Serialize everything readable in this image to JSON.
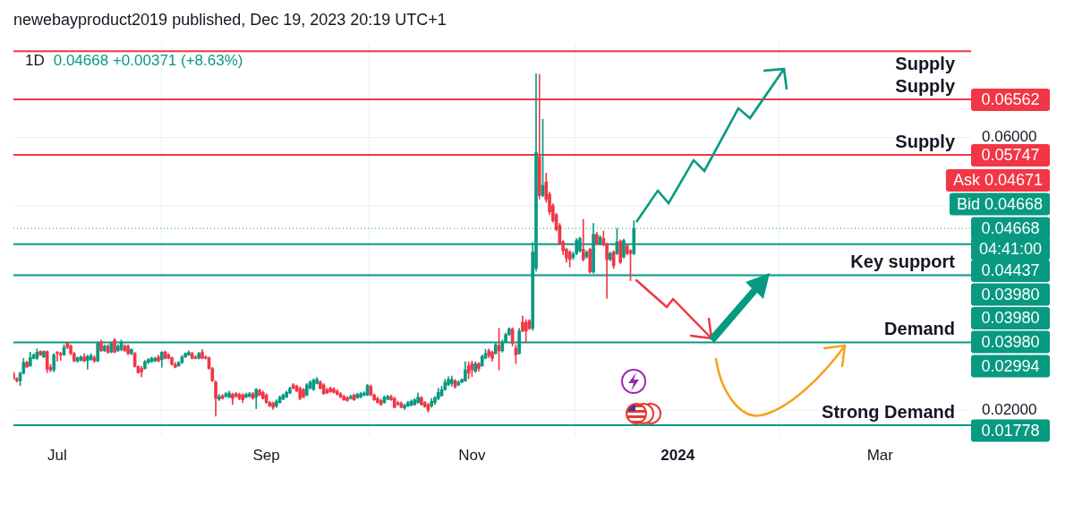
{
  "chart_data": {
    "type": "candlestick",
    "title": "1D",
    "subtitle": "0.04668 +0.00371 (+8.63%)",
    "x": [
      "2023-06-18",
      "2023-06-19",
      "2023-06-20",
      "2023-06-21",
      "2023-06-22",
      "2023-06-23",
      "2023-06-24",
      "2023-06-25",
      "2023-06-26",
      "2023-06-27",
      "2023-06-28",
      "2023-06-29",
      "2023-06-30",
      "2023-07-01",
      "2023-07-02",
      "2023-07-03",
      "2023-07-04",
      "2023-07-05",
      "2023-07-06",
      "2023-07-07",
      "2023-07-08",
      "2023-07-09",
      "2023-07-10",
      "2023-07-11",
      "2023-07-12",
      "2023-07-13",
      "2023-07-14",
      "2023-07-15",
      "2023-07-16",
      "2023-07-17",
      "2023-07-18",
      "2023-07-19",
      "2023-07-20",
      "2023-07-21",
      "2023-07-22",
      "2023-07-23",
      "2023-07-24",
      "2023-07-25",
      "2023-07-26",
      "2023-07-27",
      "2023-07-28",
      "2023-07-29",
      "2023-07-30",
      "2023-07-31",
      "2023-08-01",
      "2023-08-02",
      "2023-08-03",
      "2023-08-04",
      "2023-08-05",
      "2023-08-06",
      "2023-08-07",
      "2023-08-08",
      "2023-08-09",
      "2023-08-10",
      "2023-08-11",
      "2023-08-12",
      "2023-08-13",
      "2023-08-14",
      "2023-08-15",
      "2023-08-16",
      "2023-08-17",
      "2023-08-18",
      "2023-08-19",
      "2023-08-20",
      "2023-08-21",
      "2023-08-22",
      "2023-08-23",
      "2023-08-24",
      "2023-08-25",
      "2023-08-26",
      "2023-08-27",
      "2023-08-28",
      "2023-08-29",
      "2023-08-30",
      "2023-08-31",
      "2023-09-01",
      "2023-09-02",
      "2023-09-03",
      "2023-09-04",
      "2023-09-05",
      "2023-09-06",
      "2023-09-07",
      "2023-09-08",
      "2023-09-09",
      "2023-09-10",
      "2023-09-11",
      "2023-09-12",
      "2023-09-13",
      "2023-09-14",
      "2023-09-15",
      "2023-09-16",
      "2023-09-17",
      "2023-09-18",
      "2023-09-19",
      "2023-09-20",
      "2023-09-21",
      "2023-09-22",
      "2023-09-23",
      "2023-09-24",
      "2023-09-25",
      "2023-09-26",
      "2023-09-27",
      "2023-09-28",
      "2023-09-29",
      "2023-09-30",
      "2023-10-01",
      "2023-10-02",
      "2023-10-03",
      "2023-10-04",
      "2023-10-05",
      "2023-10-06",
      "2023-10-07",
      "2023-10-08",
      "2023-10-09",
      "2023-10-10",
      "2023-10-11",
      "2023-10-12",
      "2023-10-13",
      "2023-10-14",
      "2023-10-15",
      "2023-10-16",
      "2023-10-17",
      "2023-10-18",
      "2023-10-19",
      "2023-10-20",
      "2023-10-21",
      "2023-10-22",
      "2023-10-23",
      "2023-10-24",
      "2023-10-25",
      "2023-10-26",
      "2023-10-27",
      "2023-10-28",
      "2023-10-29",
      "2023-10-30",
      "2023-10-31",
      "2023-11-01",
      "2023-11-02",
      "2023-11-03",
      "2023-11-04",
      "2023-11-05",
      "2023-11-06",
      "2023-11-07",
      "2023-11-08",
      "2023-11-09",
      "2023-11-10",
      "2023-11-11",
      "2023-11-12",
      "2023-11-13",
      "2023-11-14",
      "2023-11-15",
      "2023-11-16",
      "2023-11-17",
      "2023-11-18",
      "2023-11-19",
      "2023-11-20",
      "2023-11-21",
      "2023-11-22",
      "2023-11-23",
      "2023-11-24",
      "2023-11-25",
      "2023-11-26",
      "2023-11-27",
      "2023-11-28",
      "2023-11-29",
      "2023-11-30",
      "2023-12-01",
      "2023-12-02",
      "2023-12-03",
      "2023-12-04",
      "2023-12-05",
      "2023-12-06",
      "2023-12-07",
      "2023-12-08",
      "2023-12-09",
      "2023-12-10",
      "2023-12-11",
      "2023-12-12",
      "2023-12-13",
      "2023-12-14",
      "2023-12-15",
      "2023-12-16",
      "2023-12-17",
      "2023-12-18",
      "2023-12-19"
    ],
    "ohlc": [
      [
        0.0254,
        0.0256,
        0.0245,
        0.0246
      ],
      [
        0.0246,
        0.0248,
        0.0241,
        0.0243
      ],
      [
        0.0243,
        0.0256,
        0.0236,
        0.0254
      ],
      [
        0.0254,
        0.0276,
        0.0253,
        0.027
      ],
      [
        0.027,
        0.0272,
        0.0263,
        0.0263
      ],
      [
        0.0265,
        0.0285,
        0.0264,
        0.0277
      ],
      [
        0.0276,
        0.0283,
        0.0275,
        0.0281
      ],
      [
        0.0276,
        0.029,
        0.0274,
        0.0285
      ],
      [
        0.0286,
        0.0287,
        0.028,
        0.0281
      ],
      [
        0.0278,
        0.0287,
        0.0277,
        0.0286
      ],
      [
        0.0286,
        0.0287,
        0.0255,
        0.026
      ],
      [
        0.0263,
        0.0267,
        0.0256,
        0.0259
      ],
      [
        0.0259,
        0.0283,
        0.0256,
        0.0281
      ],
      [
        0.0285,
        0.0286,
        0.0272,
        0.0283
      ],
      [
        0.0283,
        0.0285,
        0.0273,
        0.0281
      ],
      [
        0.0281,
        0.0296,
        0.028,
        0.0292
      ],
      [
        0.0298,
        0.03,
        0.029,
        0.0292
      ],
      [
        0.0294,
        0.0296,
        0.0281,
        0.0283
      ],
      [
        0.0283,
        0.0285,
        0.0271,
        0.0272
      ],
      [
        0.0272,
        0.0278,
        0.027,
        0.0277
      ],
      [
        0.0273,
        0.028,
        0.0272,
        0.0278
      ],
      [
        0.0278,
        0.0283,
        0.0271,
        0.0272
      ],
      [
        0.0273,
        0.0281,
        0.026,
        0.0279
      ],
      [
        0.0274,
        0.0283,
        0.0273,
        0.028
      ],
      [
        0.0277,
        0.028,
        0.027,
        0.0272
      ],
      [
        0.0272,
        0.03,
        0.0271,
        0.0298
      ],
      [
        0.03,
        0.0303,
        0.0286,
        0.0287
      ],
      [
        0.0287,
        0.0296,
        0.0286,
        0.0294
      ],
      [
        0.0294,
        0.0296,
        0.0283,
        0.0285
      ],
      [
        0.0285,
        0.03,
        0.0284,
        0.0298
      ],
      [
        0.0303,
        0.0305,
        0.0284,
        0.0285
      ],
      [
        0.0287,
        0.0296,
        0.0286,
        0.0294
      ],
      [
        0.0289,
        0.0303,
        0.0287,
        0.03
      ],
      [
        0.0294,
        0.0296,
        0.0286,
        0.0287
      ],
      [
        0.0294,
        0.0296,
        0.0281,
        0.0283
      ],
      [
        0.0283,
        0.029,
        0.0281,
        0.0289
      ],
      [
        0.0283,
        0.0285,
        0.0263,
        0.0264
      ],
      [
        0.0264,
        0.0265,
        0.0254,
        0.0255
      ],
      [
        0.0261,
        0.0264,
        0.0249,
        0.0256
      ],
      [
        0.0261,
        0.0273,
        0.026,
        0.0271
      ],
      [
        0.027,
        0.0276,
        0.0268,
        0.0274
      ],
      [
        0.0271,
        0.0278,
        0.027,
        0.0276
      ],
      [
        0.0272,
        0.0278,
        0.0271,
        0.0276
      ],
      [
        0.0278,
        0.0281,
        0.0271,
        0.0272
      ],
      [
        0.0274,
        0.0286,
        0.0263,
        0.0285
      ],
      [
        0.0285,
        0.0287,
        0.0275,
        0.0276
      ],
      [
        0.0281,
        0.0283,
        0.0275,
        0.0276
      ],
      [
        0.0277,
        0.0278,
        0.0266,
        0.0267
      ],
      [
        0.0267,
        0.027,
        0.0262,
        0.0263
      ],
      [
        0.0265,
        0.0271,
        0.0264,
        0.027
      ],
      [
        0.027,
        0.028,
        0.0268,
        0.0278
      ],
      [
        0.0278,
        0.0284,
        0.0277,
        0.0283
      ],
      [
        0.0281,
        0.0287,
        0.028,
        0.0285
      ],
      [
        0.0283,
        0.0285,
        0.0275,
        0.0276
      ],
      [
        0.0278,
        0.028,
        0.0275,
        0.0276
      ],
      [
        0.0276,
        0.0285,
        0.0275,
        0.0283
      ],
      [
        0.0285,
        0.0289,
        0.0275,
        0.0276
      ],
      [
        0.0278,
        0.028,
        0.0275,
        0.0276
      ],
      [
        0.0277,
        0.0278,
        0.026,
        0.0261
      ],
      [
        0.0261,
        0.0263,
        0.0242,
        0.0243
      ],
      [
        0.0241,
        0.0243,
        0.0191,
        0.0217
      ],
      [
        0.0216,
        0.0223,
        0.0214,
        0.022
      ],
      [
        0.0221,
        0.0223,
        0.0216,
        0.0217
      ],
      [
        0.022,
        0.0226,
        0.0219,
        0.0224
      ],
      [
        0.0219,
        0.0228,
        0.0218,
        0.0225
      ],
      [
        0.0223,
        0.0225,
        0.0208,
        0.0217
      ],
      [
        0.0224,
        0.0226,
        0.0219,
        0.022
      ],
      [
        0.0223,
        0.0225,
        0.0215,
        0.0217
      ],
      [
        0.0222,
        0.0224,
        0.0211,
        0.0215
      ],
      [
        0.0219,
        0.0225,
        0.0218,
        0.0223
      ],
      [
        0.022,
        0.0226,
        0.0219,
        0.0224
      ],
      [
        0.0224,
        0.0226,
        0.0216,
        0.0217
      ],
      [
        0.0219,
        0.0232,
        0.0202,
        0.023
      ],
      [
        0.0229,
        0.0231,
        0.0221,
        0.0222
      ],
      [
        0.0226,
        0.0228,
        0.0216,
        0.0217
      ],
      [
        0.0222,
        0.0224,
        0.021,
        0.0211
      ],
      [
        0.0211,
        0.0213,
        0.0205,
        0.0206
      ],
      [
        0.021,
        0.0212,
        0.0201,
        0.0204
      ],
      [
        0.0206,
        0.0215,
        0.0204,
        0.0213
      ],
      [
        0.0211,
        0.0221,
        0.021,
        0.0219
      ],
      [
        0.0216,
        0.0224,
        0.0215,
        0.0222
      ],
      [
        0.0219,
        0.0228,
        0.0218,
        0.0226
      ],
      [
        0.0225,
        0.0234,
        0.0224,
        0.0232
      ],
      [
        0.0237,
        0.0239,
        0.0231,
        0.0232
      ],
      [
        0.0235,
        0.0237,
        0.0227,
        0.0228
      ],
      [
        0.0232,
        0.0234,
        0.0215,
        0.0217
      ],
      [
        0.023,
        0.0232,
        0.0218,
        0.0219
      ],
      [
        0.0222,
        0.0239,
        0.0221,
        0.0237
      ],
      [
        0.0232,
        0.0243,
        0.0231,
        0.0241
      ],
      [
        0.023,
        0.0246,
        0.0229,
        0.0244
      ],
      [
        0.0239,
        0.0248,
        0.0238,
        0.0245
      ],
      [
        0.0241,
        0.0243,
        0.0231,
        0.0232
      ],
      [
        0.0237,
        0.0239,
        0.0223,
        0.0224
      ],
      [
        0.023,
        0.0232,
        0.0224,
        0.0225
      ],
      [
        0.0232,
        0.0234,
        0.0226,
        0.0227
      ],
      [
        0.0231,
        0.0233,
        0.0225,
        0.0226
      ],
      [
        0.0228,
        0.023,
        0.0222,
        0.0223
      ],
      [
        0.0224,
        0.0226,
        0.0218,
        0.0219
      ],
      [
        0.022,
        0.0222,
        0.0214,
        0.0215
      ],
      [
        0.0218,
        0.022,
        0.0213,
        0.0214
      ],
      [
        0.0217,
        0.0222,
        0.0216,
        0.022
      ],
      [
        0.0222,
        0.0224,
        0.0214,
        0.0215
      ],
      [
        0.0218,
        0.0225,
        0.0217,
        0.0223
      ],
      [
        0.0219,
        0.0226,
        0.0218,
        0.0224
      ],
      [
        0.0222,
        0.0227,
        0.0221,
        0.0225
      ],
      [
        0.0222,
        0.0238,
        0.0221,
        0.0236
      ],
      [
        0.0235,
        0.0237,
        0.0221,
        0.0222
      ],
      [
        0.0222,
        0.0224,
        0.0214,
        0.0215
      ],
      [
        0.0217,
        0.0219,
        0.021,
        0.0211
      ],
      [
        0.0214,
        0.0216,
        0.0207,
        0.0208
      ],
      [
        0.0211,
        0.0221,
        0.021,
        0.0219
      ],
      [
        0.0216,
        0.0222,
        0.0215,
        0.022
      ],
      [
        0.022,
        0.0222,
        0.0214,
        0.0215
      ],
      [
        0.0217,
        0.0219,
        0.0203,
        0.0204
      ],
      [
        0.0211,
        0.0213,
        0.0207,
        0.0208
      ],
      [
        0.021,
        0.0212,
        0.0203,
        0.0204
      ],
      [
        0.0203,
        0.0209,
        0.0201,
        0.0207
      ],
      [
        0.0206,
        0.0213,
        0.0205,
        0.0211
      ],
      [
        0.0207,
        0.0215,
        0.0206,
        0.0213
      ],
      [
        0.0208,
        0.0217,
        0.0207,
        0.0215
      ],
      [
        0.0211,
        0.0225,
        0.021,
        0.0219
      ],
      [
        0.0218,
        0.022,
        0.0207,
        0.0208
      ],
      [
        0.0211,
        0.0213,
        0.0204,
        0.0205
      ],
      [
        0.0208,
        0.021,
        0.0197,
        0.02
      ],
      [
        0.0206,
        0.0217,
        0.0204,
        0.0213
      ],
      [
        0.0211,
        0.022,
        0.0208,
        0.0218
      ],
      [
        0.0217,
        0.0232,
        0.0215,
        0.0226
      ],
      [
        0.0221,
        0.0235,
        0.022,
        0.023
      ],
      [
        0.023,
        0.0245,
        0.0229,
        0.0241
      ],
      [
        0.0237,
        0.0249,
        0.0236,
        0.0245
      ],
      [
        0.0239,
        0.025,
        0.0235,
        0.0245
      ],
      [
        0.0243,
        0.0245,
        0.0232,
        0.0234
      ],
      [
        0.0237,
        0.0243,
        0.0236,
        0.0241
      ],
      [
        0.0241,
        0.0246,
        0.024,
        0.0245
      ],
      [
        0.0243,
        0.0271,
        0.0242,
        0.0259
      ],
      [
        0.0265,
        0.0271,
        0.0246,
        0.0254
      ],
      [
        0.0268,
        0.0272,
        0.0249,
        0.0259
      ],
      [
        0.0257,
        0.0271,
        0.0255,
        0.0268
      ],
      [
        0.0268,
        0.027,
        0.0257,
        0.0261
      ],
      [
        0.0265,
        0.0281,
        0.0264,
        0.0279
      ],
      [
        0.0276,
        0.0289,
        0.0275,
        0.0283
      ],
      [
        0.0287,
        0.029,
        0.0277,
        0.028
      ],
      [
        0.0285,
        0.0287,
        0.0272,
        0.0276
      ],
      [
        0.0283,
        0.0298,
        0.0282,
        0.0296
      ],
      [
        0.0295,
        0.032,
        0.0259,
        0.0287
      ],
      [
        0.0287,
        0.0303,
        0.0285,
        0.03
      ],
      [
        0.03,
        0.0313,
        0.0299,
        0.0311
      ],
      [
        0.0311,
        0.0321,
        0.0309,
        0.0319
      ],
      [
        0.0319,
        0.0321,
        0.0294,
        0.0298
      ],
      [
        0.0291,
        0.0296,
        0.0268,
        0.0281
      ],
      [
        0.0283,
        0.032,
        0.0282,
        0.0316
      ],
      [
        0.0329,
        0.0338,
        0.0315,
        0.0316
      ],
      [
        0.0329,
        0.0333,
        0.0299,
        0.0316
      ],
      [
        0.0331,
        0.0333,
        0.0318,
        0.032
      ],
      [
        0.032,
        0.0446,
        0.0317,
        0.0432
      ],
      [
        0.0408,
        0.0694,
        0.0404,
        0.0578
      ],
      [
        0.0572,
        0.0693,
        0.051,
        0.0515
      ],
      [
        0.0515,
        0.0627,
        0.0513,
        0.053
      ],
      [
        0.0535,
        0.0548,
        0.0505,
        0.0509
      ],
      [
        0.0517,
        0.052,
        0.0487,
        0.0491
      ],
      [
        0.05,
        0.0503,
        0.0476,
        0.0478
      ],
      [
        0.0487,
        0.0489,
        0.0463,
        0.0465
      ],
      [
        0.0471,
        0.0474,
        0.0443,
        0.0445
      ],
      [
        0.0447,
        0.0449,
        0.0428,
        0.0434
      ],
      [
        0.0436,
        0.0438,
        0.0417,
        0.0423
      ],
      [
        0.0432,
        0.0434,
        0.041,
        0.0421
      ],
      [
        0.0424,
        0.0432,
        0.0421,
        0.0429
      ],
      [
        0.043,
        0.0452,
        0.0428,
        0.0449
      ],
      [
        0.0434,
        0.0454,
        0.0432,
        0.0452
      ],
      [
        0.0436,
        0.048,
        0.0419,
        0.0421
      ],
      [
        0.0425,
        0.0434,
        0.0423,
        0.0432
      ],
      [
        0.0436,
        0.0438,
        0.0401,
        0.0403
      ],
      [
        0.0403,
        0.0474,
        0.0401,
        0.0458
      ],
      [
        0.0458,
        0.0461,
        0.0443,
        0.0445
      ],
      [
        0.0445,
        0.0456,
        0.0443,
        0.0454
      ],
      [
        0.0452,
        0.0463,
        0.0441,
        0.0443
      ],
      [
        0.0443,
        0.0445,
        0.0364,
        0.0421
      ],
      [
        0.0421,
        0.0432,
        0.0419,
        0.043
      ],
      [
        0.0432,
        0.0434,
        0.0408,
        0.0412
      ],
      [
        0.043,
        0.0467,
        0.0428,
        0.0447
      ],
      [
        0.0448,
        0.045,
        0.0415,
        0.0417
      ],
      [
        0.0425,
        0.0451,
        0.0423,
        0.0449
      ],
      [
        0.0441,
        0.0443,
        0.0428,
        0.043
      ],
      [
        0.0434,
        0.0436,
        0.039,
        0.04297
      ],
      [
        0.04297,
        0.0478,
        0.0428,
        0.04668
      ]
    ],
    "colors": [
      "#f23645",
      "#f23645",
      "#089981",
      "#089981",
      "#f23645",
      "#089981",
      "#089981",
      "#089981",
      "#f23645",
      "#089981",
      "#f23645",
      "#f23645",
      "#089981",
      "#f23645",
      "#f23645",
      "#089981",
      "#f23645",
      "#f23645",
      "#f23645",
      "#089981",
      "#089981",
      "#f23645",
      "#089981",
      "#089981",
      "#f23645",
      "#089981",
      "#f23645",
      "#089981",
      "#f23645",
      "#089981",
      "#f23645",
      "#089981",
      "#089981",
      "#f23645",
      "#f23645",
      "#089981",
      "#f23645",
      "#f23645",
      "#f23645",
      "#089981",
      "#089981",
      "#089981",
      "#089981",
      "#f23645",
      "#089981",
      "#f23645",
      "#f23645",
      "#f23645",
      "#f23645",
      "#089981",
      "#089981",
      "#089981",
      "#089981",
      "#f23645",
      "#f23645",
      "#089981",
      "#f23645",
      "#f23645",
      "#f23645",
      "#f23645",
      "#f23645",
      "#089981",
      "#f23645",
      "#089981",
      "#089981",
      "#f23645",
      "#f23645",
      "#f23645",
      "#f23645",
      "#089981",
      "#089981",
      "#f23645",
      "#089981",
      "#f23645",
      "#f23645",
      "#f23645",
      "#f23645",
      "#f23645",
      "#089981",
      "#089981",
      "#089981",
      "#089981",
      "#089981",
      "#f23645",
      "#f23645",
      "#f23645",
      "#f23645",
      "#089981",
      "#089981",
      "#089981",
      "#089981",
      "#f23645",
      "#f23645",
      "#f23645",
      "#f23645",
      "#f23645",
      "#f23645",
      "#f23645",
      "#f23645",
      "#f23645",
      "#089981",
      "#f23645",
      "#089981",
      "#089981",
      "#089981",
      "#089981",
      "#f23645",
      "#f23645",
      "#f23645",
      "#f23645",
      "#089981",
      "#089981",
      "#f23645",
      "#f23645",
      "#f23645",
      "#f23645",
      "#089981",
      "#089981",
      "#089981",
      "#089981",
      "#089981",
      "#f23645",
      "#f23645",
      "#f23645",
      "#089981",
      "#089981",
      "#089981",
      "#089981",
      "#089981",
      "#089981",
      "#089981",
      "#f23645",
      "#089981",
      "#089981",
      "#089981",
      "#f23645",
      "#f23645",
      "#089981",
      "#f23645",
      "#089981",
      "#089981",
      "#f23645",
      "#f23645",
      "#089981",
      "#f23645",
      "#089981",
      "#089981",
      "#089981",
      "#f23645",
      "#f23645",
      "#089981",
      "#f23645",
      "#f23645",
      "#f23645",
      "#089981",
      "#089981",
      "#f23645",
      "#089981",
      "#f23645",
      "#f23645",
      "#f23645",
      "#f23645",
      "#f23645",
      "#f23645",
      "#f23645",
      "#f23645",
      "#089981",
      "#089981",
      "#089981",
      "#f23645",
      "#089981",
      "#f23645",
      "#089981",
      "#f23645",
      "#089981",
      "#f23645",
      "#f23645",
      "#089981",
      "#f23645",
      "#089981",
      "#f23645",
      "#089981",
      "#f23645",
      "#f23645",
      "#089981"
    ],
    "xlim": [
      "2023-06-18",
      "2024-03-28"
    ],
    "xticks": [
      {
        "value": "2023-07-01",
        "label": "Jul"
      },
      {
        "value": "2023-09-01",
        "label": "Sep"
      },
      {
        "value": "2023-11-01",
        "label": "Nov"
      },
      {
        "value": "2024-01-01",
        "label": "2024"
      },
      {
        "value": "2024-03-01",
        "label": "Mar"
      }
    ],
    "ylim": [
      0.0162,
      0.0739
    ],
    "yticks": [
      {
        "value": 0.02,
        "label": "0.02000"
      },
      {
        "value": 0.03,
        "label": null
      },
      {
        "value": 0.04,
        "label": null
      },
      {
        "value": 0.05,
        "label": null
      },
      {
        "value": 0.06,
        "label": "0.06000"
      }
    ],
    "grid": true,
    "ref_lines": [
      {
        "axis": "y",
        "value": 0.0727,
        "label": "Supply",
        "color": "#f23645"
      },
      {
        "axis": "y",
        "value": 0.06562,
        "label": "Supply",
        "color": "#f23645"
      },
      {
        "axis": "y",
        "value": 0.05747,
        "label": "Supply",
        "color": "#f23645"
      },
      {
        "axis": "y",
        "value": 0.04668,
        "color": "#089981",
        "line_style": "dotted"
      },
      {
        "axis": "y",
        "value": 0.04437,
        "color": "#089981"
      },
      {
        "axis": "y",
        "value": 0.0398,
        "label": "Key support",
        "color": "#089981"
      },
      {
        "axis": "y",
        "value": 0.02994,
        "label": "Demand",
        "color": "#089981"
      },
      {
        "axis": "y",
        "value": 0.01778,
        "label": "Strong Demand",
        "color": "#089981"
      }
    ],
    "annotations": [
      "newebayproduct2019 published, Dec 19, 2023 20:19 UTC+1",
      "0.06562",
      "0.05747",
      "Ask 0.04671",
      "Bid 0.04668",
      "0.04668",
      "04:41:00",
      "0.04437",
      "0.03980",
      "0.03980",
      "0.03980",
      "0.02994",
      "0.01778"
    ]
  }
}
